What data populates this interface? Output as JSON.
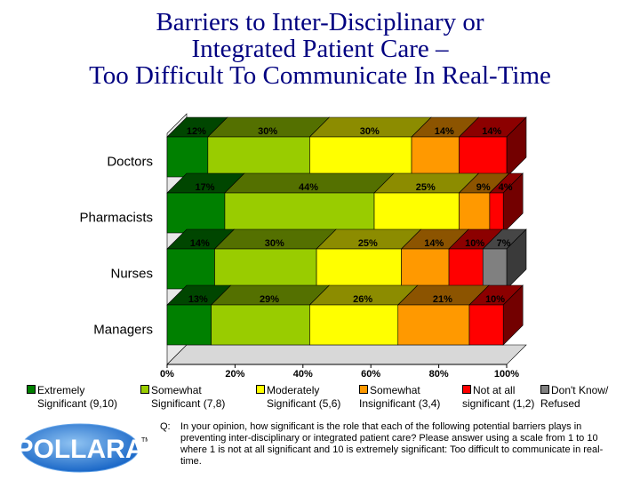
{
  "title_lines": [
    "Barriers to Inter-Disciplinary or",
    "Integrated Patient Care –",
    "Too Difficult To Communicate In Real-Time"
  ],
  "chart_data": {
    "type": "bar",
    "orientation": "horizontal",
    "stacked": true,
    "categories": [
      "Doctors",
      "Pharmacists",
      "Nurses",
      "Managers"
    ],
    "series": [
      {
        "name": "Extremely Significant (9,10)",
        "color": "#008000",
        "values": [
          12,
          17,
          14,
          13
        ]
      },
      {
        "name": "Somewhat Significant (7,8)",
        "color": "#99cc00",
        "values": [
          30,
          44,
          30,
          29
        ]
      },
      {
        "name": "Moderately Significant (5,6)",
        "color": "#ffff00",
        "values": [
          30,
          25,
          25,
          26
        ]
      },
      {
        "name": "Somewhat Insignificant (3,4)",
        "color": "#ff9900",
        "values": [
          14,
          9,
          14,
          21
        ]
      },
      {
        "name": "Not at all significant (1,2)",
        "color": "#ff0000",
        "values": [
          14,
          4,
          10,
          10
        ]
      },
      {
        "name": "Don't Know/ Refused",
        "color": "#808080",
        "values": [
          0,
          0,
          7,
          0
        ]
      }
    ],
    "data_labels": [
      [
        "12%",
        "30%",
        "30%",
        "14%",
        "14%",
        ""
      ],
      [
        "17%",
        "44%",
        "25%",
        "9%",
        "4%",
        ""
      ],
      [
        "14%",
        "30%",
        "25%",
        "14%",
        "10%",
        "7%"
      ],
      [
        "13%",
        "29%",
        "26%",
        "21%",
        "10%",
        ""
      ]
    ],
    "xlim": [
      0,
      100
    ],
    "x_ticks": [
      "0%",
      "20%",
      "40%",
      "60%",
      "80%",
      "100%"
    ],
    "legend_position": "bottom"
  },
  "legend": [
    {
      "line1": "Extremely",
      "line2": "Significant (9,10)",
      "color": "#008000"
    },
    {
      "line1": "Somewhat",
      "line2": "Significant (7,8)",
      "color": "#99cc00"
    },
    {
      "line1": "Moderately",
      "line2": "Significant (5,6)",
      "color": "#ffff00"
    },
    {
      "line1": "Somewhat",
      "line2": "Insignificant (3,4)",
      "color": "#ff9900"
    },
    {
      "line1": "Not at all",
      "line2": "significant (1,2)",
      "color": "#ff0000"
    },
    {
      "line1": "Don't Know/",
      "line2": "Refused",
      "color": "#808080"
    }
  ],
  "logo": {
    "text": "POLLARA",
    "tm": "TM"
  },
  "question": {
    "prefix": "Q:",
    "text": "In your opinion, how significant is the role that each of the following potential barriers plays in preventing inter-disciplinary or integrated patient care? Please answer using a scale from 1 to 10 where 1 is not at all significant and 10 is extremely significant: Too difficult to communicate in real-time."
  }
}
